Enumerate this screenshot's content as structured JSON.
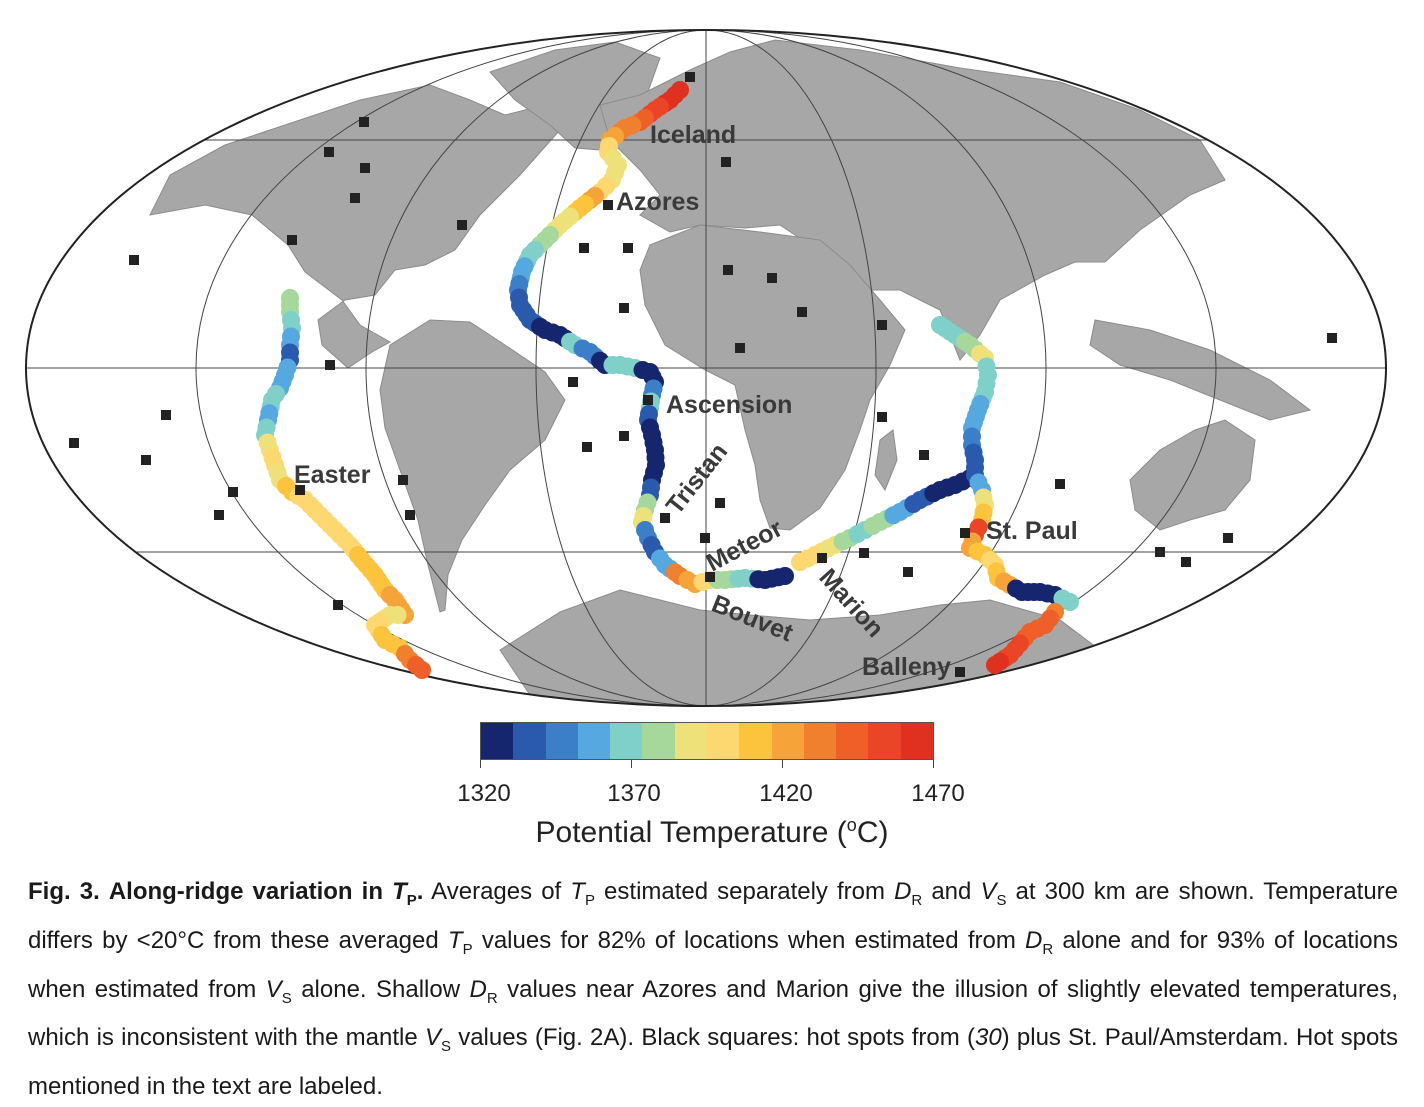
{
  "hotspot_labels": {
    "iceland": "Iceland",
    "azores": "Azores",
    "ascension": "Ascension",
    "easter": "Easter",
    "tristan": "Tristan",
    "meteor": "Meteor",
    "bouvet": "Bouvet",
    "marion": "Marion",
    "st_paul": "St. Paul",
    "balleny": "Balleny"
  },
  "colorbar": {
    "title": "Potential Temperature (°C)",
    "title_prefix": "Potential Temperature (",
    "title_deg": "o",
    "title_suffix": "C)",
    "ticks": [
      "1320",
      "1370",
      "1420",
      "1470"
    ],
    "range": [
      1320,
      1470
    ],
    "bins": [
      "#15256e",
      "#2a5aad",
      "#3a7fc8",
      "#55a8e0",
      "#7fd0c8",
      "#a5d89a",
      "#eee17a",
      "#fdd770",
      "#fbc43c",
      "#f6a33a",
      "#f07f2e",
      "#ef5f27",
      "#ea4526",
      "#e0301f"
    ]
  },
  "caption": {
    "fig_label": "Fig. 3.",
    "fig_title_pre": "Along-ridge variation in ",
    "fig_title_T": "T",
    "fig_title_sub": "P",
    "fig_title_end": ".",
    "p1": "Averages of ",
    "T1": "T",
    "P1": "P",
    "p2": " estimated separately from ",
    "D1": "D",
    "R1": "R",
    "p3": " and ",
    "V1": "V",
    "S1": "S",
    "p4": " at 300 km are shown. Temperature differs by <20°C from these averaged ",
    "T2": "T",
    "P2": "P",
    "p5": " values for 82% of locations when estimated from ",
    "D2": "D",
    "R2": "R",
    "p6": " alone and for 93% of locations when estimated from ",
    "V2": "V",
    "S2": "S",
    "p7": " alone. Shallow ",
    "D3": "D",
    "R3": "R",
    "p8": " values near Azores and Marion give the illusion of slightly elevated temperatures, which is inconsistent with the mantle ",
    "V3": "V",
    "S3": "S",
    "p9": " values (Fig. 2A). Black squares: hot spots from (",
    "ref": "30",
    "p10": ") plus St. Paul/Amsterdam. Hot spots mentioned in the text are labeled."
  },
  "colors": {
    "ocean": "#ffffff",
    "land": "#a7a7a7",
    "graticule": "#444444",
    "hotspot": "#222222"
  }
}
